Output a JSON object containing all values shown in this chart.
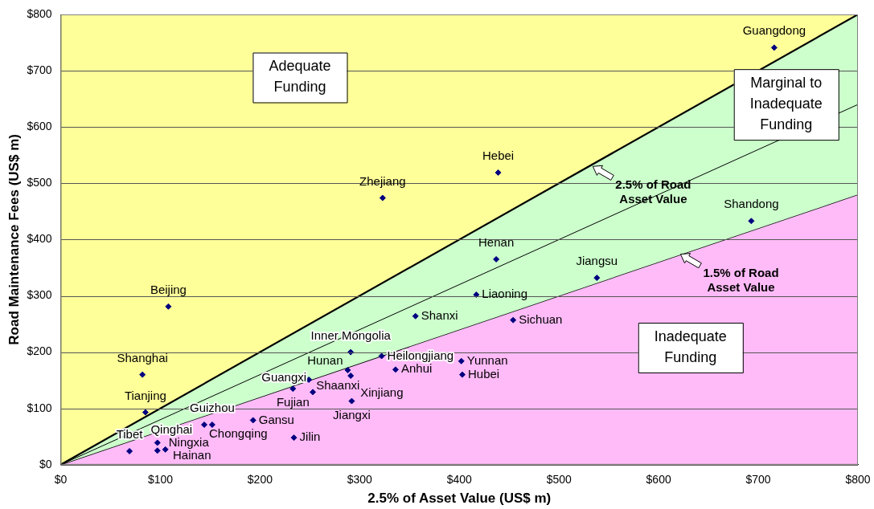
{
  "chart_data": {
    "type": "scatter",
    "xlabel": "2.5% of Asset Value (US$ m)",
    "ylabel": "Road Maintenance Fees (US$ m)",
    "xlim": [
      0,
      800
    ],
    "ylim": [
      0,
      800
    ],
    "xticks": [
      {
        "value": 0,
        "label": "$0"
      },
      {
        "value": 100,
        "label": "$100"
      },
      {
        "value": 200,
        "label": "$200"
      },
      {
        "value": 300,
        "label": "$300"
      },
      {
        "value": 400,
        "label": "$400"
      },
      {
        "value": 500,
        "label": "$500"
      },
      {
        "value": 600,
        "label": "$600"
      },
      {
        "value": 700,
        "label": "$700"
      },
      {
        "value": 800,
        "label": "$800"
      }
    ],
    "yticks": [
      {
        "value": 0,
        "label": "$0"
      },
      {
        "value": 100,
        "label": "$100"
      },
      {
        "value": 200,
        "label": "$200"
      },
      {
        "value": 300,
        "label": "$300"
      },
      {
        "value": 400,
        "label": "$400"
      },
      {
        "value": 500,
        "label": "$500"
      },
      {
        "value": 600,
        "label": "$600"
      },
      {
        "value": 700,
        "label": "$700"
      },
      {
        "value": 800,
        "label": "$800"
      }
    ],
    "grid": "y",
    "legend": false,
    "marker": "diamond",
    "series": [
      {
        "type": "area",
        "color": "#ffbbf8",
        "marker": "none",
        "x": [
          0,
          800
        ],
        "values": [
          0,
          480
        ]
      },
      {
        "type": "area",
        "color": "#ccffcc",
        "marker": "none",
        "x": [
          0,
          800
        ],
        "values": [
          0,
          800
        ]
      },
      {
        "type": "line",
        "color": "#000000",
        "marker": "none",
        "x": [
          0,
          800
        ],
        "values": [
          0,
          640
        ]
      },
      {
        "color": "#000080",
        "x": [
          108,
          82,
          85,
          97,
          69,
          97,
          105,
          144,
          152,
          193,
          234,
          233,
          249,
          253,
          291,
          288,
          291,
          292,
          322,
          336,
          356,
          402,
          403,
          417,
          454,
          439,
          323,
          437,
          693,
          538,
          716
        ],
        "values": [
          281,
          160,
          93,
          39,
          24,
          25,
          27,
          71,
          71,
          79,
          48,
          135,
          151,
          129,
          200,
          168,
          158,
          113,
          193,
          169,
          264,
          184,
          160,
          302,
          257,
          519,
          474,
          365,
          433,
          332,
          741
        ],
        "value_labels": [
          "Beijing",
          "Shanghai",
          "Tianjing",
          "Ningxia",
          "Tibet",
          "Qinghai",
          "Hainan",
          "Chongqing",
          "Guizhou",
          "Gansu",
          "Jilin",
          "Fujian",
          "Shaanxi",
          "Guangxi",
          "Inner Mongolia",
          "Hunan",
          "Xinjiang",
          "Jiangxi",
          "Heilongjiang",
          "Anhui",
          "Shanxi",
          "Yunnan",
          "Hubei",
          "Liaoning",
          "Sichuan",
          "Hebei",
          "Zhejiang",
          "Henan",
          "Shandong",
          "Jiangsu",
          "Guangdong"
        ]
      }
    ],
    "annotations": [
      "Adequate Funding",
      "Marginal to Inadequate Funding",
      "Inadequate Funding",
      {
        "text": "2.5% of Road Asset Value",
        "x": 534,
        "y": 530
      },
      {
        "text": "1.5% of Road Asset Value",
        "x": 622,
        "y": 374
      }
    ]
  }
}
